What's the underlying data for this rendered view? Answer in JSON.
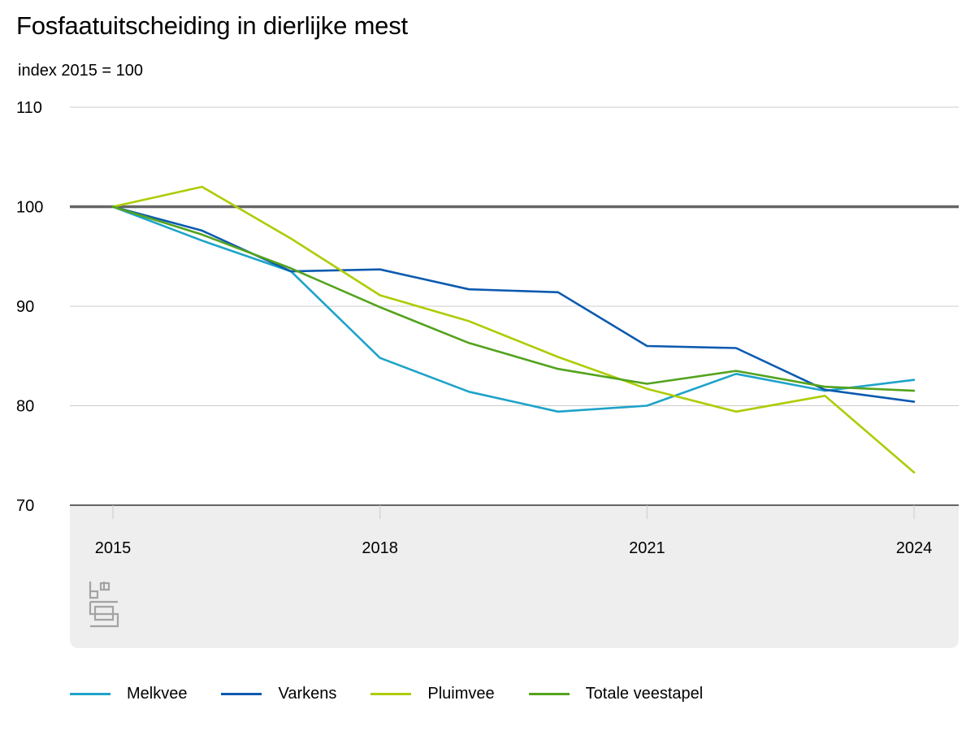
{
  "title": "Fosfaatuitscheiding in dierlijke mest",
  "subtitle": "index 2015 = 100",
  "chart_data": {
    "type": "line",
    "title": "Fosfaatuitscheiding in dierlijke mest",
    "ylabel": "index 2015 = 100",
    "xlabel": "",
    "x": [
      2015,
      2016,
      2017,
      2018,
      2019,
      2020,
      2021,
      2022,
      2023,
      2024
    ],
    "xticks": [
      2015,
      2018,
      2021,
      2024
    ],
    "xtick_labels": [
      "2015",
      "2018",
      "2021",
      "2024"
    ],
    "yticks": [
      70,
      80,
      90,
      100,
      110
    ],
    "ytick_labels": [
      "70",
      "80",
      "90",
      "100",
      "110"
    ],
    "ylim": [
      70,
      110
    ],
    "xlim": [
      2014.5,
      2024.5
    ],
    "grid": true,
    "reference_line": 100,
    "legend_position": "bottom",
    "series": [
      {
        "name": "Melkvee",
        "color": "#1ea3c9",
        "values": [
          100,
          96.6,
          93.5,
          84.8,
          81.4,
          79.4,
          80.0,
          83.2,
          81.5,
          82.6
        ]
      },
      {
        "name": "Varkens",
        "color": "#0b5ab0",
        "values": [
          100,
          97.6,
          93.5,
          93.7,
          91.7,
          91.4,
          86.0,
          85.8,
          81.6,
          80.4
        ]
      },
      {
        "name": "Pluimvee",
        "color": "#afcb05",
        "values": [
          100,
          102.0,
          96.8,
          91.1,
          88.5,
          84.9,
          81.7,
          79.4,
          81.0,
          73.3
        ]
      },
      {
        "name": "Totale veestapel",
        "color": "#53a31d",
        "values": [
          100,
          97.2,
          93.8,
          89.9,
          86.3,
          83.7,
          82.2,
          83.5,
          81.9,
          81.5
        ]
      }
    ]
  },
  "colors": {
    "grid": "#cccccc",
    "axis": "#666666",
    "reference": "#666666",
    "xaxis_bg": "#eeeeee",
    "logo": "#a3a3a3"
  },
  "logo_icon": "cbs-logo-icon"
}
